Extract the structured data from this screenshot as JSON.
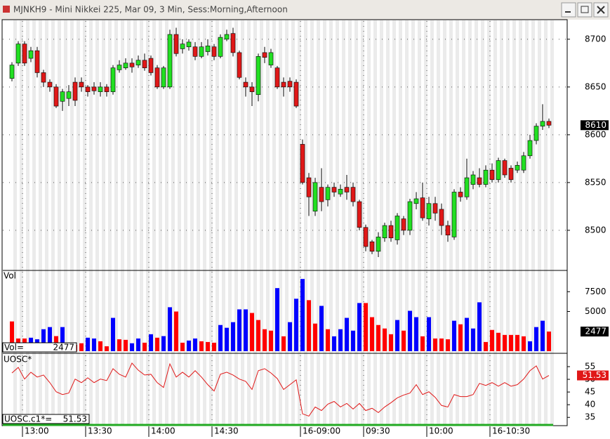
{
  "window": {
    "title": "MJNKH9 - Mini Nikkei 225, Mar 09, 3 Min, Sess:Morning,Afternoon"
  },
  "chart_data": [
    {
      "type": "candlestick",
      "categories": [
        null,
        null,
        "13:00",
        null,
        null,
        null,
        null,
        null,
        null,
        null,
        null,
        null,
        "13:30",
        null,
        null,
        null,
        null,
        null,
        null,
        null,
        null,
        null,
        "14:00",
        null,
        null,
        null,
        null,
        null,
        null,
        null,
        null,
        null,
        "14:30",
        null,
        null,
        null,
        null,
        null,
        null,
        null,
        null,
        null,
        null,
        null,
        null,
        null,
        "16-09:00",
        null,
        null,
        null,
        null,
        null,
        null,
        null,
        null,
        null,
        "09:30",
        null,
        null,
        null,
        null,
        null,
        null,
        null,
        null,
        null,
        "10:00",
        null,
        null,
        null,
        null,
        null,
        null,
        null,
        null,
        null,
        "16-10:30",
        null,
        null,
        null,
        null,
        null,
        null,
        null,
        null,
        null
      ],
      "open": [
        8659,
        8675,
        8695,
        8680,
        8688,
        8665,
        8655,
        8650,
        8635,
        8638,
        8655,
        8655,
        8650,
        8650,
        8645,
        8650,
        8645,
        8668,
        8670,
        8675,
        8673,
        8678,
        8680,
        8670,
        8650,
        8650,
        8705,
        8690,
        8692,
        8692,
        8682,
        8687,
        8692,
        8682,
        8700,
        8706,
        8686,
        8655,
        8650,
        8642,
        8686,
        8673,
        8670,
        8655,
        8656,
        8655,
        8590,
        8555,
        8520,
        8545,
        8532,
        8545,
        8538,
        8545,
        8545,
        8530,
        8503,
        8488,
        8478,
        8492,
        8505,
        8490,
        8512,
        8500,
        8528,
        8534,
        8512,
        8528,
        8522,
        8505,
        8493,
        8540,
        8535,
        8548,
        8555,
        8548,
        8563,
        8553,
        8573,
        8565,
        8563,
        8563,
        8578,
        8594,
        8609,
        8614
      ],
      "high": [
        8676,
        8698,
        8698,
        8692,
        8692,
        8668,
        8658,
        8653,
        8648,
        8652,
        8660,
        8660,
        8652,
        8655,
        8655,
        8653,
        8673,
        8678,
        8680,
        8680,
        8683,
        8685,
        8683,
        8673,
        8672,
        8710,
        8712,
        8700,
        8700,
        8697,
        8697,
        8700,
        8695,
        8705,
        8710,
        8712,
        8688,
        8660,
        8655,
        8685,
        8692,
        8690,
        8672,
        8660,
        8660,
        8658,
        8595,
        8560,
        8555,
        8565,
        8548,
        8550,
        8548,
        8558,
        8550,
        8532,
        8506,
        8490,
        8498,
        8508,
        8510,
        8518,
        8515,
        8533,
        8540,
        8550,
        8535,
        8535,
        8528,
        8510,
        8543,
        8545,
        8575,
        8562,
        8565,
        8568,
        8570,
        8576,
        8575,
        8568,
        8572,
        8582,
        8600,
        8612,
        8632,
        8617
      ],
      "low": [
        8656,
        8672,
        8672,
        8676,
        8660,
        8650,
        8645,
        8628,
        8625,
        8630,
        8630,
        8645,
        8640,
        8642,
        8640,
        8640,
        8642,
        8665,
        8668,
        8665,
        8670,
        8667,
        8662,
        8648,
        8648,
        8648,
        8682,
        8685,
        8688,
        8678,
        8680,
        8683,
        8678,
        8680,
        8698,
        8682,
        8658,
        8640,
        8630,
        8635,
        8675,
        8670,
        8648,
        8640,
        8645,
        8628,
        8548,
        8515,
        8515,
        8520,
        8525,
        8535,
        8535,
        8532,
        8525,
        8500,
        8478,
        8475,
        8472,
        8488,
        8488,
        8485,
        8495,
        8495,
        8522,
        8510,
        8505,
        8510,
        8495,
        8488,
        8490,
        8530,
        8532,
        8543,
        8545,
        8545,
        8550,
        8550,
        8555,
        8550,
        8560,
        8560,
        8575,
        8590,
        8605,
        8607
      ],
      "close": [
        8673,
        8695,
        8675,
        8688,
        8665,
        8655,
        8650,
        8630,
        8645,
        8645,
        8636,
        8650,
        8645,
        8646,
        8650,
        8645,
        8670,
        8673,
        8675,
        8671,
        8678,
        8670,
        8665,
        8650,
        8670,
        8705,
        8685,
        8695,
        8697,
        8682,
        8692,
        8693,
        8682,
        8702,
        8705,
        8686,
        8660,
        8650,
        8645,
        8682,
        8681,
        8686,
        8650,
        8650,
        8650,
        8630,
        8550,
        8535,
        8550,
        8530,
        8545,
        8540,
        8543,
        8540,
        8530,
        8503,
        8483,
        8478,
        8493,
        8505,
        8492,
        8515,
        8500,
        8530,
        8533,
        8513,
        8528,
        8518,
        8505,
        8495,
        8540,
        8535,
        8555,
        8558,
        8548,
        8563,
        8553,
        8573,
        8558,
        8553,
        8568,
        8578,
        8594,
        8609,
        8614,
        8610
      ],
      "up_color": "#22e022",
      "down_color": "#e01818",
      "ylim": [
        8458,
        8719
      ],
      "yticks": [
        8500,
        8550,
        8600,
        8650,
        8700
      ],
      "grid": true
    },
    {
      "type": "bar",
      "title": "Vol",
      "readout_label": "Vol=",
      "values": [
        3750,
        1600,
        1600,
        1700,
        1500,
        2770,
        3040,
        1900,
        3040,
        800,
        800,
        1000,
        1700,
        1600,
        1250,
        620,
        4200,
        1500,
        1430,
        1000,
        1600,
        1070,
        2140,
        1700,
        1900,
        5540,
        5000,
        1070,
        1340,
        1600,
        1250,
        1160,
        1070,
        3300,
        2950,
        3660,
        5270,
        5270,
        4820,
        3930,
        2770,
        2590,
        7950,
        1875,
        3660,
        6610,
        9100,
        6430,
        3480,
        5710,
        2770,
        1875,
        2770,
        4200,
        2590,
        6070,
        6070,
        4290,
        3300,
        2860,
        2140,
        3930,
        2590,
        5090,
        4290,
        1875,
        4290,
        1600,
        1600,
        1500,
        3840,
        3390,
        4200,
        2860,
        6160,
        1160,
        2680,
        2320,
        2050,
        2050,
        2050,
        1875,
        1250,
        3040,
        3840,
        2477
      ],
      "colors": [
        "red",
        "red",
        "red",
        "blue",
        "blue",
        "blue",
        "blue",
        "red",
        "blue",
        "red",
        "red",
        "red",
        "blue",
        "blue",
        "red",
        "red",
        "blue",
        "red",
        "red",
        "blue",
        "blue",
        "red",
        "blue",
        "red",
        "blue",
        "blue",
        "red",
        "red",
        "blue",
        "blue",
        "red",
        "red",
        "red",
        "blue",
        "blue",
        "blue",
        "blue",
        "blue",
        "red",
        "red",
        "red",
        "red",
        "blue",
        "red",
        "blue",
        "blue",
        "blue",
        "red",
        "red",
        "blue",
        "red",
        "blue",
        "blue",
        "blue",
        "blue",
        "blue",
        "red",
        "red",
        "red",
        "red",
        "red",
        "blue",
        "red",
        "blue",
        "blue",
        "red",
        "blue",
        "red",
        "red",
        "red",
        "blue",
        "red",
        "blue",
        "blue",
        "blue",
        "red",
        "red",
        "red",
        "red",
        "red",
        "red",
        "red",
        "blue",
        "blue",
        "blue",
        "red"
      ],
      "ylim": [
        0,
        10090
      ],
      "yticks": [
        5000,
        7500
      ]
    },
    {
      "type": "line",
      "title": "UOSC*",
      "readout_label": "UOSC.c1*=",
      "color": "#e01818",
      "values": [
        52.5,
        54.7,
        50.1,
        52.8,
        50.9,
        51.7,
        48.7,
        45.1,
        44.0,
        44.6,
        50.1,
        48.7,
        50.6,
        48.7,
        50.1,
        49.5,
        54.2,
        52.0,
        50.9,
        56.4,
        53.6,
        51.7,
        52.0,
        48.7,
        46.8,
        56.1,
        50.9,
        52.8,
        50.9,
        53.4,
        50.9,
        47.9,
        45.4,
        52.0,
        52.8,
        51.7,
        50.1,
        49.2,
        46.0,
        53.4,
        54.2,
        52.5,
        50.3,
        46.0,
        47.9,
        49.8,
        36.4,
        35.5,
        39.1,
        37.7,
        40.2,
        41.3,
        39.1,
        40.5,
        38.3,
        40.5,
        37.7,
        38.6,
        36.9,
        39.1,
        40.8,
        42.7,
        43.8,
        44.6,
        47.9,
        44.0,
        45.1,
        42.9,
        39.7,
        39.1,
        44.0,
        43.2,
        43.2,
        44.0,
        48.4,
        47.6,
        48.7,
        47.3,
        48.7,
        47.3,
        47.9,
        50.1,
        53.4,
        55.3,
        50.1,
        51.53
      ],
      "ylim": [
        32.3,
        59.7
      ],
      "yticks": [
        35,
        40,
        45,
        50,
        55
      ]
    }
  ]
}
